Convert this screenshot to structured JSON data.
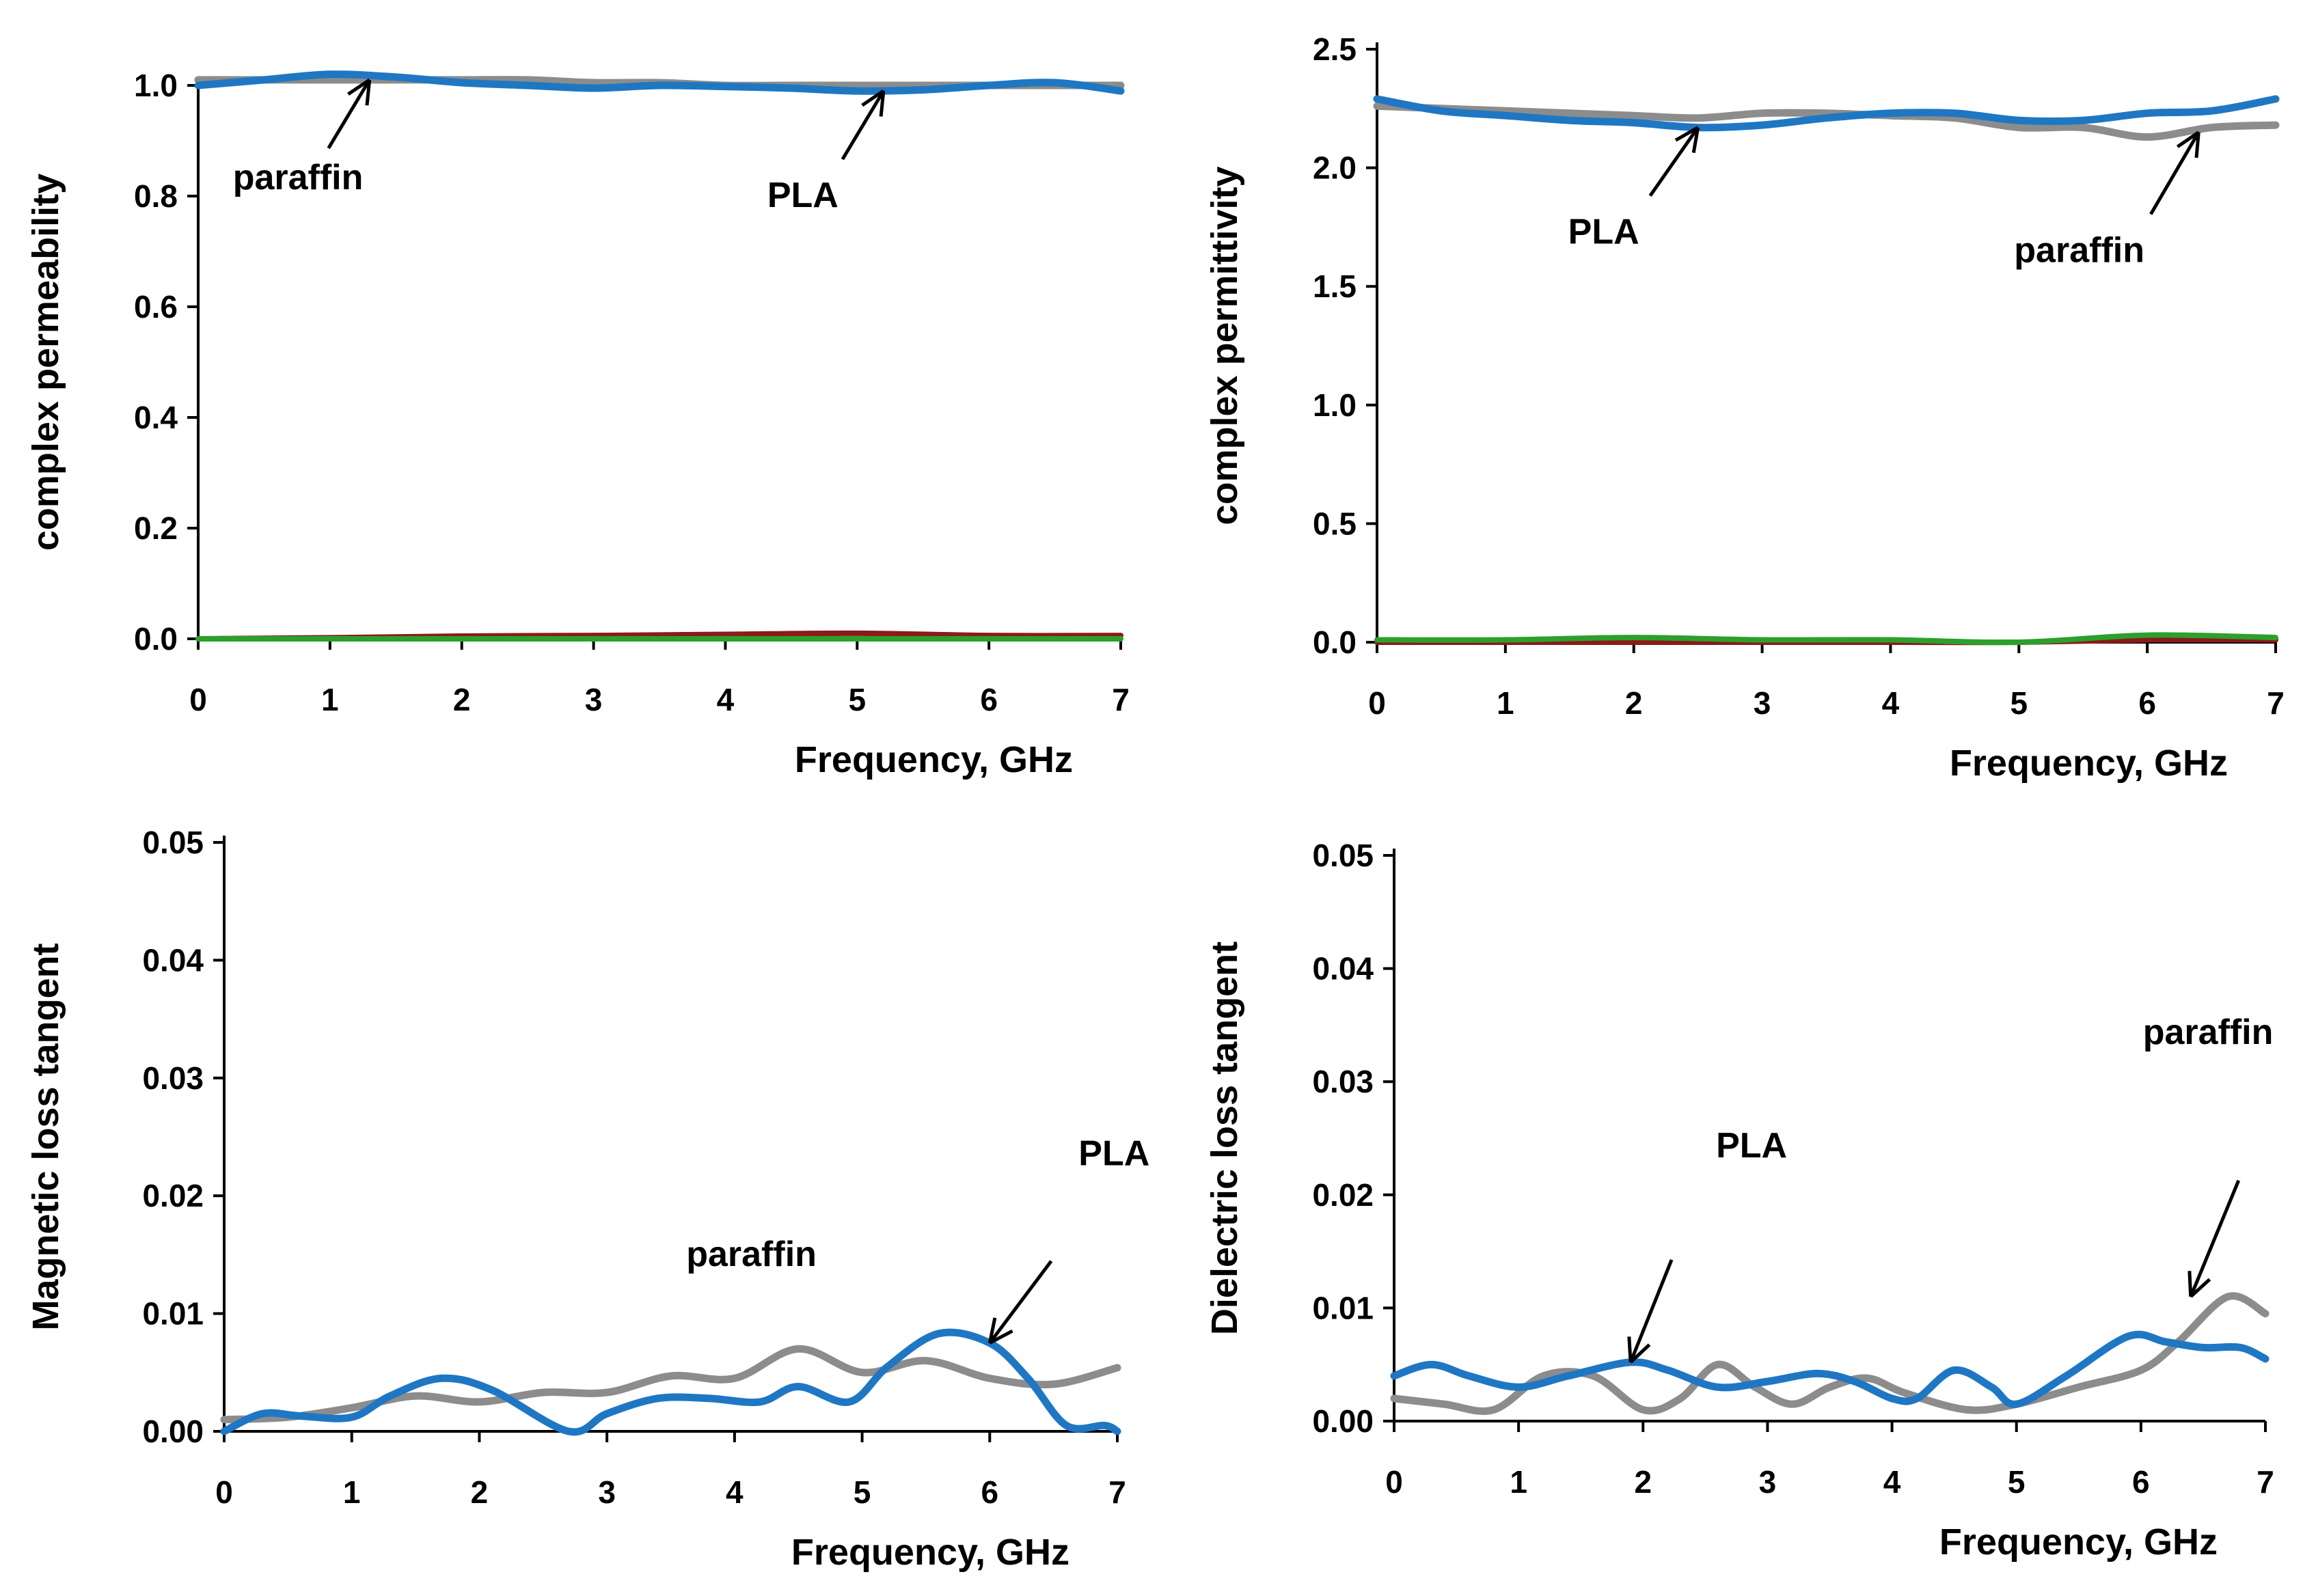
{
  "chart_data": [
    {
      "type": "line",
      "xlabel": "Frequency, GHz",
      "ylabel": "complex permeability",
      "xlim": [
        0,
        7
      ],
      "ylim": [
        0,
        1.0
      ],
      "xticks": [
        "0",
        "1",
        "2",
        "3",
        "4",
        "5",
        "6",
        "7"
      ],
      "yticks": [
        "0.0",
        "0.2",
        "0.4",
        "0.6",
        "0.8",
        "1.0"
      ],
      "series": [
        {
          "color": "#8c8c8c",
          "x": [
            0,
            0.5,
            1,
            1.5,
            2,
            2.5,
            3,
            3.5,
            4,
            4.5,
            5,
            5.5,
            6,
            6.5,
            7
          ],
          "y": [
            1.01,
            1.01,
            1.01,
            1.01,
            1.01,
            1.01,
            1.005,
            1.005,
            1.0,
            1.0,
            1.0,
            1.0,
            1.0,
            1.0,
            1.0
          ]
        },
        {
          "color": "#1f77c4",
          "x": [
            0,
            0.5,
            1,
            1.5,
            2,
            2.5,
            3,
            3.5,
            4,
            4.5,
            5,
            5.5,
            6,
            6.5,
            7
          ],
          "y": [
            1.0,
            1.01,
            1.02,
            1.015,
            1.005,
            1.0,
            0.995,
            1.0,
            0.998,
            0.995,
            0.99,
            0.992,
            1.0,
            1.005,
            0.99
          ]
        },
        {
          "color": "#8b1a1a",
          "x": [
            0,
            1,
            2,
            3,
            4,
            5,
            6,
            7
          ],
          "y": [
            0.0,
            0.002,
            0.005,
            0.006,
            0.008,
            0.01,
            0.006,
            0.006
          ]
        },
        {
          "color": "#2ca02c",
          "x": [
            0,
            1,
            2,
            3,
            4,
            5,
            6,
            7
          ],
          "y": [
            0.0,
            0.0,
            0.0,
            0.0,
            0.0,
            0.0,
            0.0,
            0.0
          ]
        }
      ],
      "annotations": [
        {
          "text": "paraffin",
          "x": 1.3,
          "y": 1.01
        },
        {
          "text": "PLA",
          "x": 5.2,
          "y": 0.99
        }
      ]
    },
    {
      "type": "line",
      "xlabel": "Frequency, GHz",
      "ylabel": "complex permittivity",
      "xlim": [
        0,
        7
      ],
      "ylim": [
        0,
        2.5
      ],
      "xticks": [
        "0",
        "1",
        "2",
        "3",
        "4",
        "5",
        "6",
        "7"
      ],
      "yticks": [
        "0.0",
        "0.5",
        "1.0",
        "1.5",
        "2.0",
        "2.5"
      ],
      "series": [
        {
          "color": "#8c8c8c",
          "x": [
            0,
            0.5,
            1,
            1.5,
            2,
            2.5,
            3,
            3.5,
            4,
            4.5,
            5,
            5.5,
            6,
            6.5,
            7
          ],
          "y": [
            2.26,
            2.25,
            2.24,
            2.23,
            2.22,
            2.21,
            2.23,
            2.23,
            2.22,
            2.21,
            2.17,
            2.17,
            2.13,
            2.17,
            2.18
          ]
        },
        {
          "color": "#1f77c4",
          "x": [
            0,
            0.5,
            1,
            1.5,
            2,
            2.5,
            3,
            3.5,
            4,
            4.5,
            5,
            5.5,
            6,
            6.5,
            7
          ],
          "y": [
            2.29,
            2.24,
            2.22,
            2.2,
            2.19,
            2.17,
            2.18,
            2.21,
            2.23,
            2.23,
            2.2,
            2.2,
            2.23,
            2.24,
            2.29
          ]
        },
        {
          "color": "#8b1a1a",
          "x": [
            0,
            1,
            2,
            3,
            4,
            5,
            6,
            7
          ],
          "y": [
            0.0,
            0.0,
            0.0,
            0.0,
            0.0,
            0.0,
            0.01,
            0.01
          ]
        },
        {
          "color": "#2ca02c",
          "x": [
            0,
            1,
            2,
            3,
            4,
            5,
            6,
            7
          ],
          "y": [
            0.01,
            0.01,
            0.02,
            0.01,
            0.01,
            0.0,
            0.03,
            0.02
          ]
        }
      ],
      "annotations": [
        {
          "text": "PLA",
          "x": 2.5,
          "y": 2.17
        },
        {
          "text": "paraffin",
          "x": 6.4,
          "y": 2.15
        }
      ]
    },
    {
      "type": "line",
      "xlabel": "Frequency, GHz",
      "ylabel": "Magnetic loss tangent",
      "xlim": [
        0,
        7
      ],
      "ylim": [
        0,
        0.05
      ],
      "xticks": [
        "0",
        "1",
        "2",
        "3",
        "4",
        "5",
        "6",
        "7"
      ],
      "yticks": [
        "0.00",
        "0.01",
        "0.02",
        "0.03",
        "0.04",
        "0.05"
      ],
      "series": [
        {
          "color": "#8c8c8c",
          "x": [
            0,
            0.5,
            1,
            1.5,
            2,
            2.5,
            3,
            3.5,
            4,
            4.5,
            5,
            5.5,
            6,
            6.5,
            7
          ],
          "y": [
            0.001,
            0.0012,
            0.002,
            0.003,
            0.0025,
            0.0033,
            0.0033,
            0.0047,
            0.0045,
            0.007,
            0.005,
            0.006,
            0.0045,
            0.004,
            0.0054
          ]
        },
        {
          "color": "#1f77c4",
          "x": [
            0,
            0.3,
            0.6,
            1,
            1.3,
            1.7,
            2.1,
            2.7,
            3,
            3.4,
            3.8,
            4.2,
            4.5,
            4.9,
            5.2,
            5.6,
            6.0,
            6.3,
            6.6,
            6.9,
            7
          ],
          "y": [
            0.0,
            0.0015,
            0.0013,
            0.0012,
            0.003,
            0.0045,
            0.0035,
            0.0,
            0.0015,
            0.0028,
            0.0028,
            0.0025,
            0.0038,
            0.0025,
            0.0055,
            0.0083,
            0.0075,
            0.0045,
            0.0005,
            0.0005,
            0.0
          ]
        }
      ],
      "annotations": [
        {
          "text": "paraffin",
          "x": 4.8,
          "y": 0.0065
        },
        {
          "text": "PLA",
          "x": 6.0,
          "y": 0.0075
        }
      ]
    },
    {
      "type": "line",
      "xlabel": "Frequency, GHz",
      "ylabel": "Dielectric loss tangent",
      "xlim": [
        0,
        7
      ],
      "ylim": [
        0,
        0.05
      ],
      "xticks": [
        "0",
        "1",
        "2",
        "3",
        "4",
        "5",
        "6",
        "7"
      ],
      "yticks": [
        "0.00",
        "0.01",
        "0.02",
        "0.03",
        "0.04",
        "0.05"
      ],
      "series": [
        {
          "color": "#8c8c8c",
          "x": [
            0,
            0.4,
            0.8,
            1.2,
            1.6,
            2,
            2.3,
            2.6,
            2.9,
            3.2,
            3.5,
            3.8,
            4.1,
            4.6,
            5,
            5.5,
            6,
            6.3,
            6.7,
            7
          ],
          "y": [
            0.002,
            0.0015,
            0.001,
            0.004,
            0.004,
            0.001,
            0.002,
            0.005,
            0.003,
            0.0015,
            0.003,
            0.0038,
            0.0025,
            0.001,
            0.0015,
            0.003,
            0.0045,
            0.007,
            0.011,
            0.0095
          ]
        },
        {
          "color": "#1f77c4",
          "x": [
            0,
            0.3,
            0.6,
            1,
            1.4,
            1.9,
            2.2,
            2.6,
            3,
            3.4,
            3.7,
            4,
            4.2,
            4.5,
            4.8,
            5,
            5.4,
            5.9,
            6.2,
            6.5,
            6.8,
            7
          ],
          "y": [
            0.004,
            0.005,
            0.004,
            0.003,
            0.004,
            0.0052,
            0.0045,
            0.003,
            0.0035,
            0.0042,
            0.0035,
            0.002,
            0.002,
            0.0045,
            0.003,
            0.0015,
            0.004,
            0.0075,
            0.007,
            0.0065,
            0.0065,
            0.0055
          ]
        }
      ],
      "annotations": [
        {
          "text": "PLA",
          "x": 1.9,
          "y": 0.0052
        },
        {
          "text": "paraffin",
          "x": 6.4,
          "y": 0.011
        }
      ]
    }
  ]
}
